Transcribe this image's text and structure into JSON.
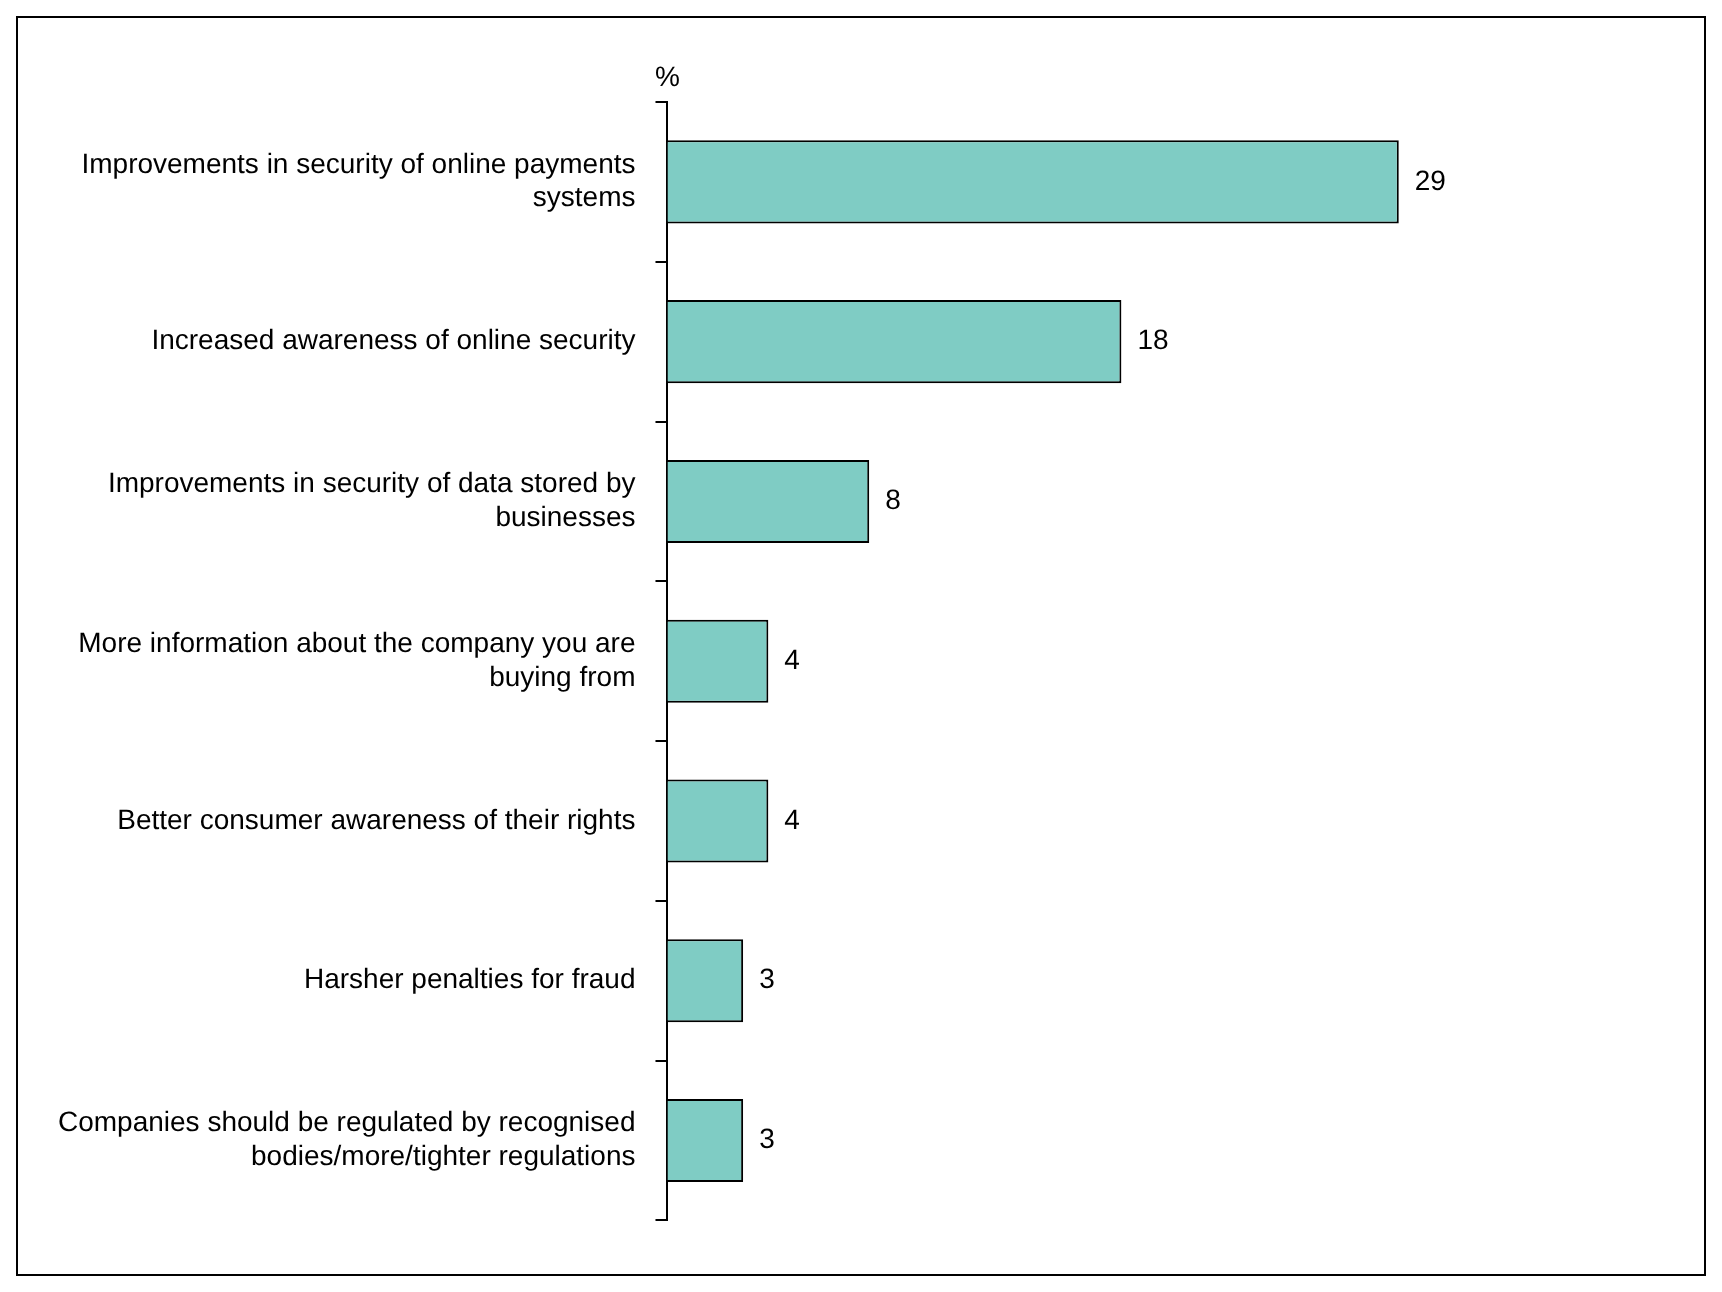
{
  "chart_data": {
    "type": "bar",
    "orientation": "horizontal",
    "xlabel": "%",
    "categories": [
      "Improvements in security of online payments systems",
      "Increased awareness of online security",
      "Improvements in security of data stored by businesses",
      "More information about the company you are buying from",
      "Better consumer awareness of their rights",
      "Harsher penalties for fraud",
      "Companies should be regulated by recognised bodies/more/tighter regulations"
    ],
    "values": [
      29,
      18,
      8,
      4,
      4,
      3,
      3
    ],
    "color": "#7fccc4",
    "data_labels": true,
    "legend": false,
    "tick_labels": "y"
  }
}
